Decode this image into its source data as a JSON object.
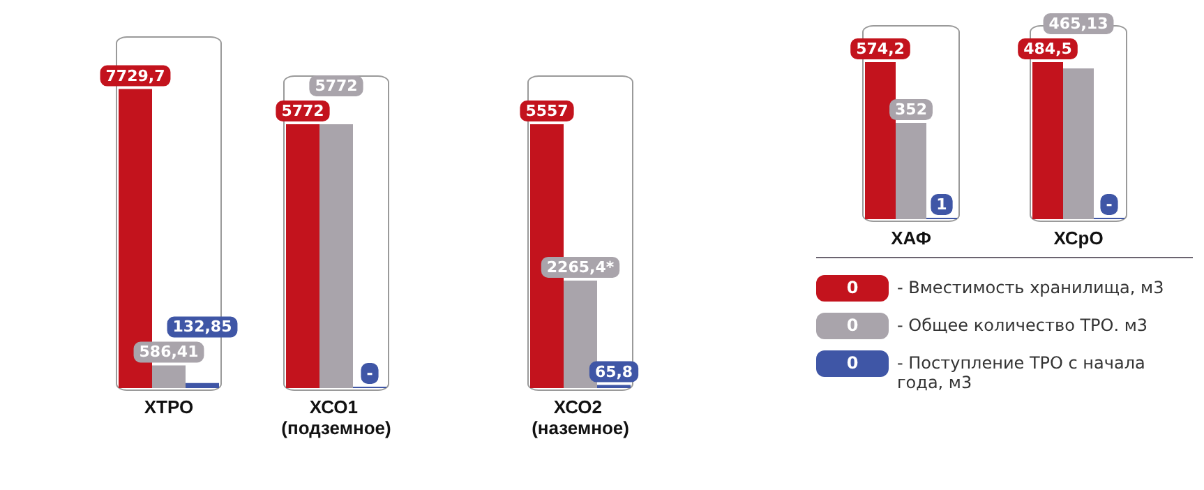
{
  "chart_data": [
    {
      "type": "bar",
      "categories": [
        "ХТРО"
      ],
      "tick_labels": "x",
      "series": [
        {
          "color": "#c3131d",
          "values": [
            7729.7
          ],
          "value_labels": [
            "7729,7"
          ]
        },
        {
          "color": "#a9a4ab",
          "values": [
            586.41
          ],
          "value_labels": [
            "586,41"
          ]
        },
        {
          "color": "#3f56a6",
          "values": [
            132.85
          ],
          "value_labels": [
            "132,85"
          ]
        }
      ]
    },
    {
      "type": "bar",
      "categories": [
        "ХСО1 (подземное)"
      ],
      "tick_labels": "x",
      "series": [
        {
          "color": "#c3131d",
          "values": [
            5772
          ],
          "value_labels": [
            "5772"
          ]
        },
        {
          "color": "#a9a4ab",
          "values": [
            5772
          ],
          "value_labels": [
            "5772"
          ]
        },
        {
          "color": "#3f56a6",
          "values": [
            0
          ],
          "value_labels": [
            "-"
          ]
        }
      ]
    },
    {
      "type": "bar",
      "categories": [
        "ХСО2 (наземное)"
      ],
      "tick_labels": "x",
      "series": [
        {
          "color": "#c3131d",
          "values": [
            5557
          ],
          "value_labels": [
            "5557"
          ]
        },
        {
          "color": "#a9a4ab",
          "values": [
            2265.4
          ],
          "value_labels": [
            "2265,4*"
          ]
        },
        {
          "color": "#3f56a6",
          "values": [
            65.8
          ],
          "value_labels": [
            "65,8"
          ]
        }
      ]
    },
    {
      "type": "bar",
      "categories": [
        "ХАФ"
      ],
      "tick_labels": "x",
      "series": [
        {
          "color": "#c3131d",
          "values": [
            574.2
          ],
          "value_labels": [
            "574,2"
          ]
        },
        {
          "color": "#a9a4ab",
          "values": [
            352
          ],
          "value_labels": [
            "352"
          ]
        },
        {
          "color": "#3f56a6",
          "values": [
            1
          ],
          "value_labels": [
            "1"
          ]
        }
      ]
    },
    {
      "type": "bar",
      "categories": [
        "ХСрО"
      ],
      "tick_labels": "x",
      "legend": "bottom",
      "annotations": [
        "0",
        "0",
        "0"
      ],
      "series": [
        {
          "name": "- Вместимость хранилища, м3",
          "color": "#c3131d",
          "values": [
            484.5
          ],
          "value_labels": [
            "484,5"
          ]
        },
        {
          "name": "- Общее количество ТРО. м3",
          "color": "#a9a4ab",
          "values": [
            465.13
          ],
          "value_labels": [
            "465,13"
          ]
        },
        {
          "name": "- Поступление ТРО с начала года, м3",
          "color": "#3f56a6",
          "values": [
            0
          ],
          "value_labels": [
            "-"
          ]
        }
      ]
    }
  ]
}
